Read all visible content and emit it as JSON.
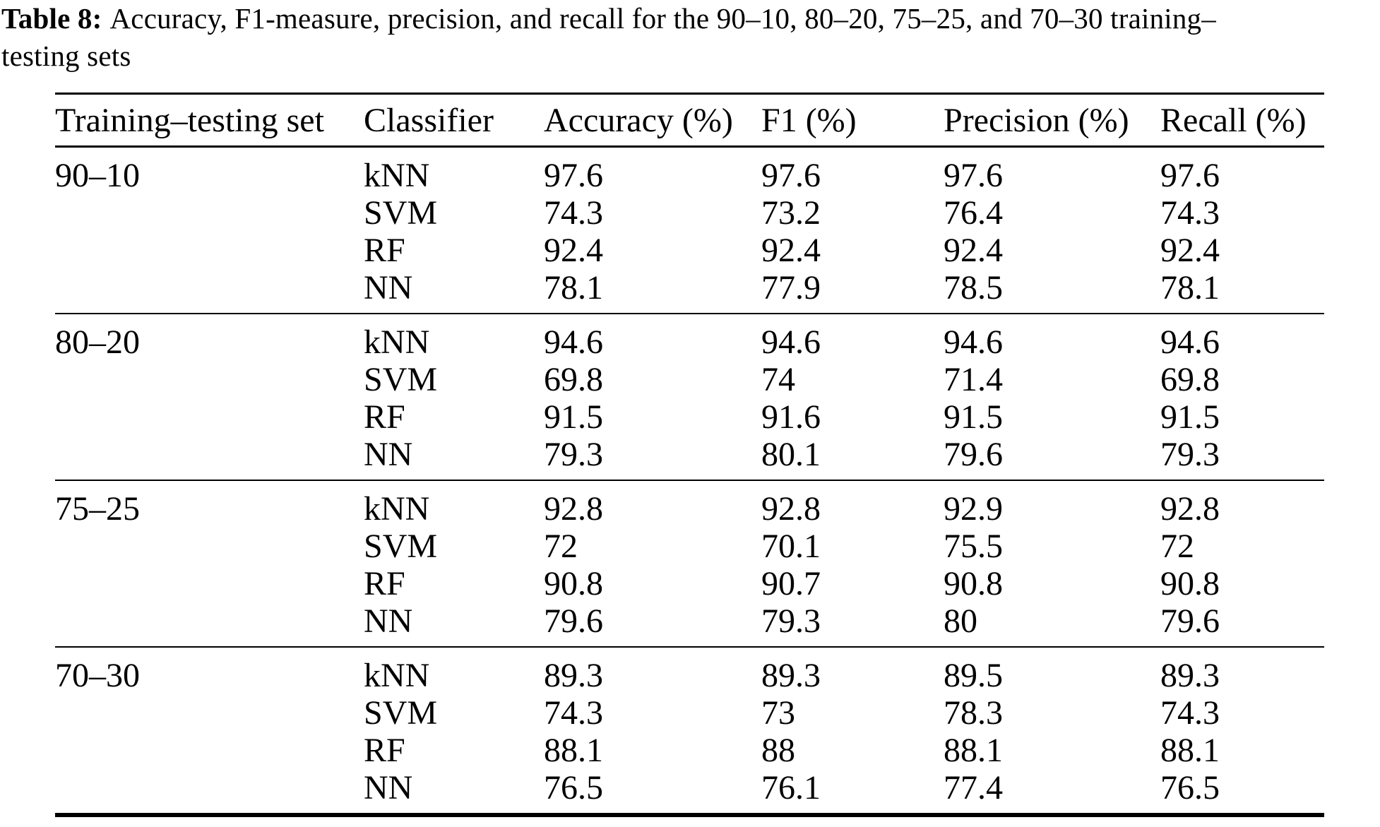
{
  "caption": {
    "label": "Table 8:",
    "line1": "Accuracy, F1-measure, precision, and recall for the 90–10, 80–20, 75–25, and 70–30 training–",
    "line2": "testing sets"
  },
  "chart_data": {
    "type": "table",
    "columns": [
      "Training–testing set",
      "Classifier",
      "Accuracy (%)",
      "F1 (%)",
      "Precision (%)",
      "Recall (%)"
    ],
    "groups": [
      {
        "set": "90–10",
        "rows": [
          {
            "classifier": "kNN",
            "values": [
              "97.6",
              "97.6",
              "97.6",
              "97.6"
            ]
          },
          {
            "classifier": "SVM",
            "values": [
              "74.3",
              "73.2",
              "76.4",
              "74.3"
            ]
          },
          {
            "classifier": "RF",
            "values": [
              "92.4",
              "92.4",
              "92.4",
              "92.4"
            ]
          },
          {
            "classifier": "NN",
            "values": [
              "78.1",
              "77.9",
              "78.5",
              "78.1"
            ]
          }
        ]
      },
      {
        "set": "80–20",
        "rows": [
          {
            "classifier": "kNN",
            "values": [
              "94.6",
              "94.6",
              "94.6",
              "94.6"
            ]
          },
          {
            "classifier": "SVM",
            "values": [
              "69.8",
              "74",
              "71.4",
              "69.8"
            ]
          },
          {
            "classifier": "RF",
            "values": [
              "91.5",
              "91.6",
              "91.5",
              "91.5"
            ]
          },
          {
            "classifier": "NN",
            "values": [
              "79.3",
              "80.1",
              "79.6",
              "79.3"
            ]
          }
        ]
      },
      {
        "set": "75–25",
        "rows": [
          {
            "classifier": "kNN",
            "values": [
              "92.8",
              "92.8",
              "92.9",
              "92.8"
            ]
          },
          {
            "classifier": "SVM",
            "values": [
              "72",
              "70.1",
              "75.5",
              "72"
            ]
          },
          {
            "classifier": "RF",
            "values": [
              "90.8",
              "90.7",
              "90.8",
              "90.8"
            ]
          },
          {
            "classifier": "NN",
            "values": [
              "79.6",
              "79.3",
              "80",
              "79.6"
            ]
          }
        ]
      },
      {
        "set": "70–30",
        "rows": [
          {
            "classifier": "kNN",
            "values": [
              "89.3",
              "89.3",
              "89.5",
              "89.3"
            ]
          },
          {
            "classifier": "SVM",
            "values": [
              "74.3",
              "73",
              "78.3",
              "74.3"
            ]
          },
          {
            "classifier": "RF",
            "values": [
              "88.1",
              "88",
              "88.1",
              "88.1"
            ]
          },
          {
            "classifier": "NN",
            "values": [
              "76.5",
              "76.1",
              "77.4",
              "76.5"
            ]
          }
        ]
      }
    ],
    "text_color": "#000000",
    "background": "#ffffff"
  }
}
